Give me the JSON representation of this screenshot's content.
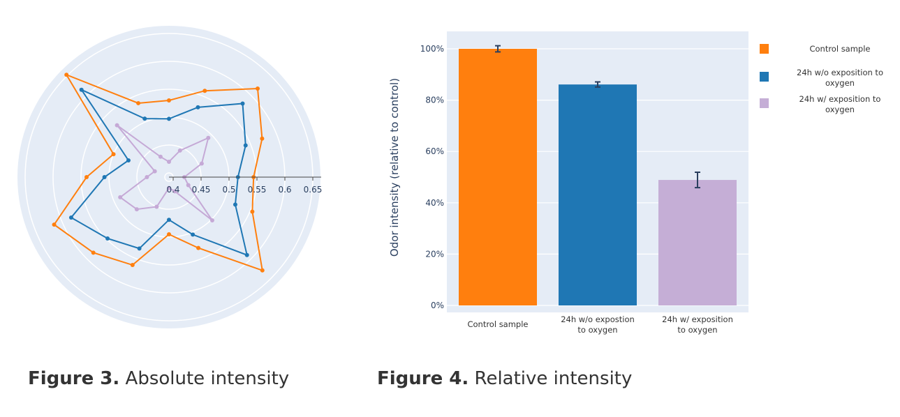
{
  "chart_data": [
    {
      "type": "radar",
      "caption_label": "Figure 3.",
      "caption_text": "Absolute intensity",
      "radial_range": [
        0.3925,
        0.6625
      ],
      "radial_ticks": [
        "0.4",
        "0.45",
        "0.5",
        "0.55",
        "0.6",
        "0.65"
      ],
      "theta_degrees": [
        0,
        22.5,
        45,
        67.5,
        90,
        112.5,
        135,
        157.5,
        180,
        202.5,
        225,
        247.5,
        270,
        292.5,
        315,
        337.5
      ],
      "grid": true,
      "series": [
        {
          "color": "#ff7f0e",
          "values": [
            0.544,
            0.573,
            0.617,
            0.56,
            0.53,
            0.536,
            0.652,
            0.5,
            0.54,
            0.615,
            0.584,
            0.563,
            0.495,
            0.53,
            0.629,
            0.554
          ]
        },
        {
          "color": "#1f77b4",
          "values": [
            0.516,
            0.541,
            0.579,
            0.528,
            0.497,
            0.506,
            0.614,
            0.471,
            0.508,
            0.582,
            0.548,
            0.531,
            0.469,
            0.504,
            0.59,
            0.521
          ]
        },
        {
          "color": "#c5a9d6",
          "values": [
            0.42,
            0.456,
            0.492,
            0.444,
            0.42,
            0.432,
            0.524,
            0.42,
            0.432,
            0.487,
            0.474,
            0.45,
            0.412,
            0.42,
            0.502,
            0.43
          ]
        }
      ]
    },
    {
      "type": "bar",
      "caption_label": "Figure 4.",
      "caption_text": "Relative intensity",
      "ylabel": "Odor intensity (relative to control)",
      "ylim": [
        0,
        105
      ],
      "yticks": [
        "0%",
        "20%",
        "40%",
        "60%",
        "80%",
        "100%"
      ],
      "ytick_values": [
        0,
        20,
        40,
        60,
        80,
        100
      ],
      "grid": true,
      "legend_position": "right",
      "categories": [
        [
          "Control sample"
        ],
        [
          "24h w/o expostion",
          "to oxygen"
        ],
        [
          "24h w/ exposition",
          "to oxygen"
        ]
      ],
      "values": [
        100,
        86.1,
        48.9
      ],
      "errors": [
        1.2,
        1.0,
        3.0
      ],
      "colors": [
        "#ff7f0e",
        "#1f77b4",
        "#c5aed6"
      ],
      "legend": [
        {
          "label": [
            "Control sample"
          ],
          "color": "#ff7f0e"
        },
        {
          "label": [
            "24h w/o exposition to",
            "oxygen"
          ],
          "color": "#1f77b4"
        },
        {
          "label": [
            "24h w/ exposition to",
            "oxygen"
          ],
          "color": "#c5aed6"
        }
      ]
    }
  ]
}
